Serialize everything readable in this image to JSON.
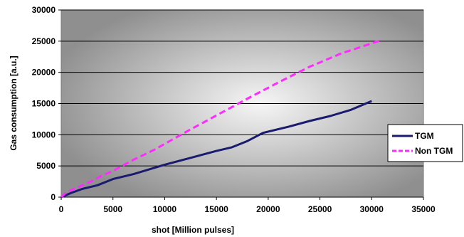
{
  "chart_data": {
    "type": "line",
    "title": "",
    "xlabel": "shot [Million pulses]",
    "ylabel": "Gas consumption [a.u.]",
    "xlim": [
      0,
      35000
    ],
    "ylim": [
      0,
      30000
    ],
    "x_ticks": [
      "0",
      "5000",
      "10000",
      "15000",
      "20000",
      "25000",
      "30000",
      "35000"
    ],
    "y_ticks": [
      "0",
      "5000",
      "10000",
      "15000",
      "20000",
      "25000",
      "30000"
    ],
    "grid": "horizontal",
    "legend_position": "right",
    "series": [
      {
        "name": "TGM",
        "color": "#1a1a6e",
        "style": "solid",
        "points": [
          [
            0,
            0
          ],
          [
            1000,
            700
          ],
          [
            2000,
            1300
          ],
          [
            3500,
            1900
          ],
          [
            5000,
            2900
          ],
          [
            7000,
            3700
          ],
          [
            10000,
            5200
          ],
          [
            12500,
            6300
          ],
          [
            15000,
            7400
          ],
          [
            16500,
            8000
          ],
          [
            18000,
            9000
          ],
          [
            19500,
            10300
          ],
          [
            22000,
            11300
          ],
          [
            24000,
            12200
          ],
          [
            26000,
            13000
          ],
          [
            28000,
            14000
          ],
          [
            30000,
            15400
          ]
        ]
      },
      {
        "name": "Non TGM",
        "color": "#ff2bff",
        "style": "dashed",
        "points": [
          [
            0,
            0
          ],
          [
            500,
            800
          ],
          [
            1500,
            1500
          ],
          [
            3000,
            2600
          ],
          [
            4000,
            3500
          ],
          [
            5000,
            4200
          ],
          [
            7000,
            6000
          ],
          [
            9000,
            7600
          ],
          [
            12000,
            10400
          ],
          [
            15000,
            13100
          ],
          [
            18000,
            15800
          ],
          [
            21000,
            18400
          ],
          [
            24000,
            20900
          ],
          [
            27000,
            23000
          ],
          [
            31000,
            25200
          ]
        ]
      }
    ]
  }
}
